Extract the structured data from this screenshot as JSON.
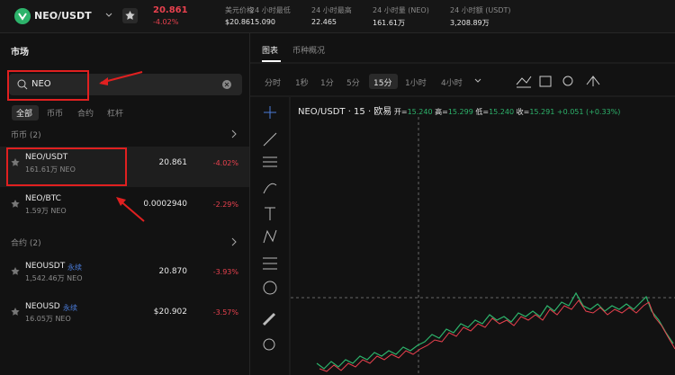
{
  "header": {
    "pair": "NEO/USDT",
    "price": "20.861",
    "change": "-4.02%",
    "stats": [
      {
        "label": "美元价格",
        "value": "$20.86"
      },
      {
        "label": "24 小时最低",
        "value": "15.090"
      },
      {
        "label": "24 小时最高",
        "value": "22.465"
      },
      {
        "label": "24 小时量 (NEO)",
        "value": "161.61万"
      },
      {
        "label": "24 小时额 (USDT)",
        "value": "3,208.89万"
      }
    ]
  },
  "market": {
    "title": "市场",
    "search": "NEO",
    "tabs": [
      "全部",
      "币币",
      "合约",
      "杠杆"
    ],
    "sections": [
      {
        "title": "币币 (2)",
        "rows": [
          {
            "pair": "NEO/USDT",
            "volume": "161.61万 NEO",
            "price": "20.861",
            "change": "-4.02%"
          },
          {
            "pair": "NEO/BTC",
            "volume": "1.59万 NEO",
            "price": "0.0002940",
            "change": "-2.29%"
          }
        ]
      },
      {
        "title": "合约 (2)",
        "rows": [
          {
            "pair": "NEOUSDT",
            "tag": "永续",
            "volume": "1,542.46万 NEO",
            "price": "20.870",
            "change": "-3.93%"
          },
          {
            "pair": "NEOUSD",
            "tag": "永续",
            "volume": "16.05万 NEO",
            "price": "$20.902",
            "change": "-3.57%"
          }
        ]
      }
    ]
  },
  "chart": {
    "tabs": [
      "图表",
      "币种概况"
    ],
    "intervals": [
      "分时",
      "1秒",
      "1分",
      "5分",
      "15分",
      "1小时",
      "4小时"
    ],
    "legend": {
      "title": "NEO/USDT · 15 · 欧易",
      "items": [
        {
          "label": "开=",
          "value": "15.240"
        },
        {
          "label": "高=",
          "value": "15.299"
        },
        {
          "label": "低=",
          "value": "15.240"
        },
        {
          "label": "收=",
          "value": "15.291"
        }
      ],
      "change": "+0.051 (+0.33%)"
    }
  }
}
